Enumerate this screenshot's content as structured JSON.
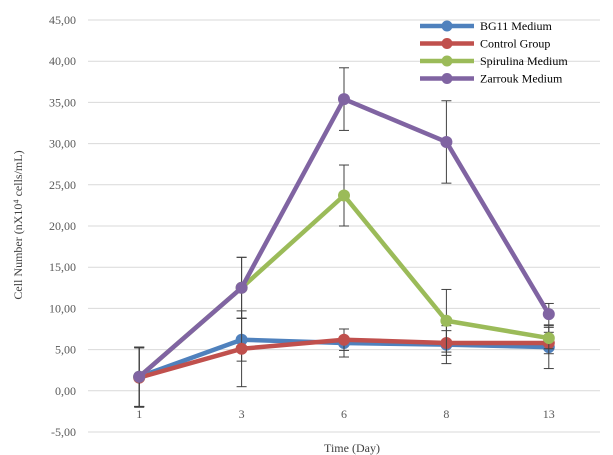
{
  "chart_data": {
    "type": "line",
    "categories": [
      "1",
      "3",
      "6",
      "8",
      "13"
    ],
    "xlabel": "Time (Day)",
    "ylabel": "Cell Number (nX10⁴ cells/mL)",
    "ylim": [
      -5,
      45
    ],
    "yticks": [
      "-5,00",
      "0,00",
      "5,00",
      "10,00",
      "15,00",
      "20,00",
      "25,00",
      "30,00",
      "35,00",
      "40,00",
      "45,00"
    ],
    "grid": "horizontal",
    "legend_position": "top-right",
    "series": [
      {
        "name": "BG11 Medium",
        "color": "#4F81BD",
        "values": [
          1.7,
          6.2,
          5.8,
          5.6,
          5.3
        ],
        "errors": [
          3.6,
          2.6,
          1.7,
          2.3,
          2.6
        ]
      },
      {
        "name": "Control Group",
        "color": "#C0504D",
        "values": [
          1.6,
          5.1,
          6.2,
          5.8,
          5.8
        ],
        "errors": [
          3.6,
          4.6,
          1.3,
          1.5,
          1.3
        ]
      },
      {
        "name": "Spirulina Medium",
        "color": "#9BBB59",
        "values": [
          1.7,
          12.5,
          23.7,
          8.5,
          6.4
        ],
        "errors": [
          3.6,
          3.7,
          3.7,
          3.8,
          1.3
        ]
      },
      {
        "name": "Zarrouk Medium",
        "color": "#8064A2",
        "values": [
          1.7,
          12.5,
          35.4,
          30.2,
          9.3
        ],
        "errors": [
          3.6,
          3.7,
          3.8,
          5.0,
          1.3
        ]
      }
    ]
  }
}
